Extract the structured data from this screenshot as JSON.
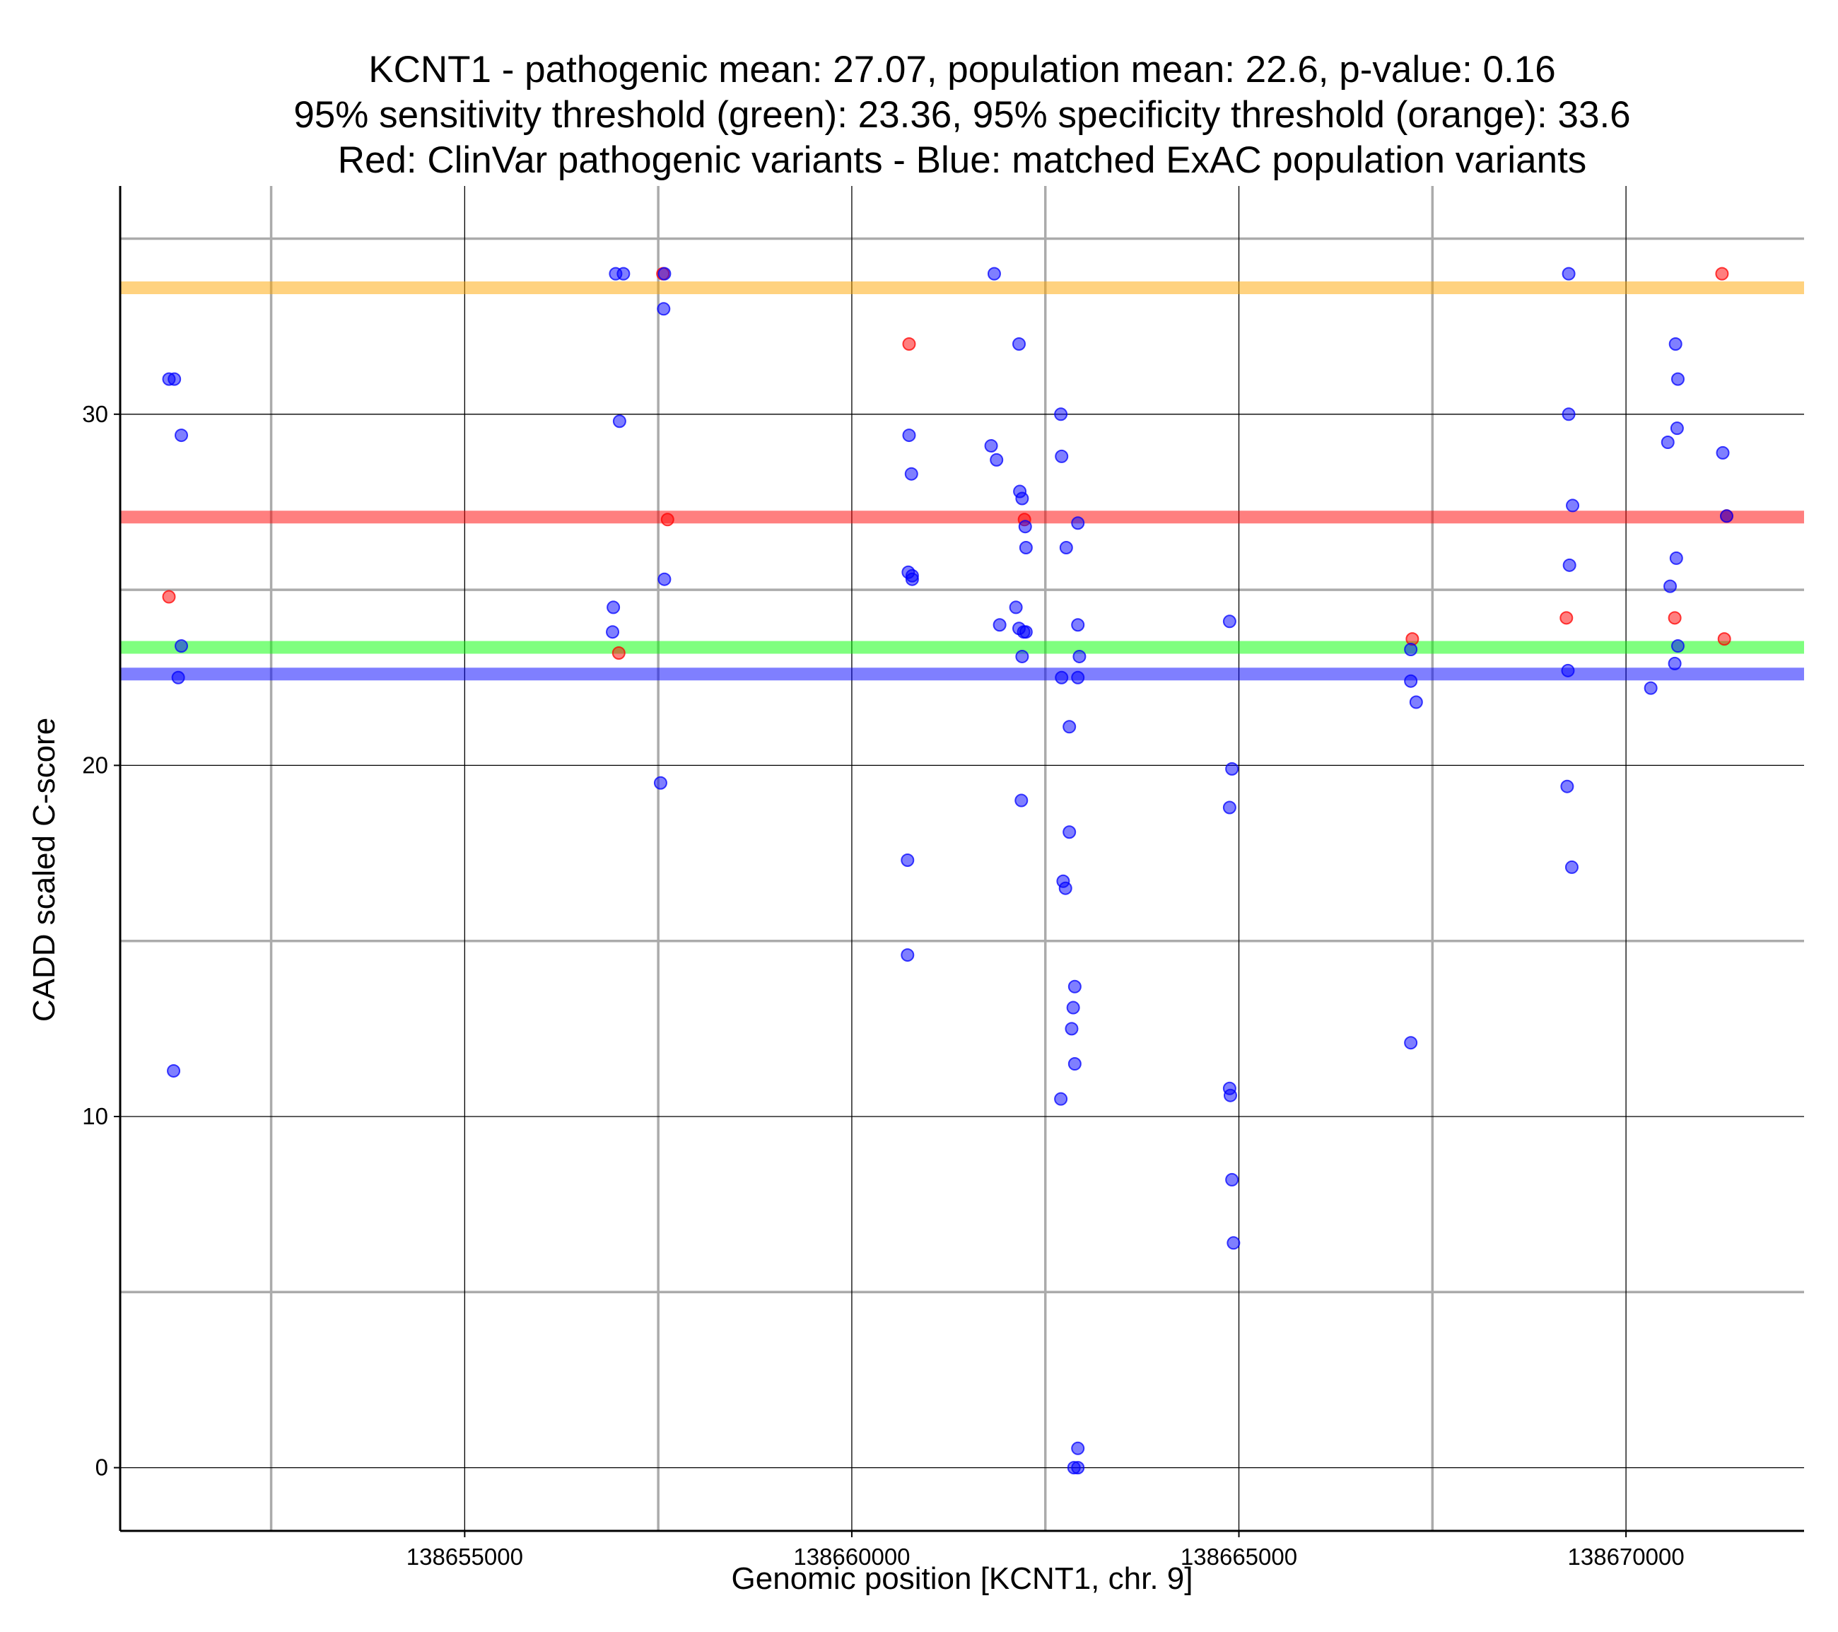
{
  "chart_data": {
    "type": "scatter",
    "title_lines": [
      "KCNT1 - pathogenic mean: 27.07, population mean: 22.6, p-value: 0.16",
      "95% sensitivity threshold (green): 23.36, 95% specificity threshold (orange): 33.6",
      "Red: ClinVar pathogenic variants - Blue: matched ExAC population variants"
    ],
    "xlabel": "Genomic position [KCNT1, chr. 9]",
    "ylabel": "CADD scaled C-score",
    "xlim": [
      138650550,
      138672300
    ],
    "ylim": [
      -1.8,
      36.5
    ],
    "x_major_ticks": [
      138655000,
      138660000,
      138665000,
      138670000
    ],
    "x_tick_labels": [
      "138655000",
      "138660000",
      "138665000",
      "138670000"
    ],
    "x_minor_ticks": [
      138652500,
      138657500,
      138662500,
      138667500
    ],
    "y_major_ticks": [
      0,
      10,
      20,
      30
    ],
    "y_tick_labels": [
      "0",
      "10",
      "20",
      "30"
    ],
    "y_minor_ticks": [
      5,
      15,
      25,
      35
    ],
    "hlines": [
      {
        "name": "specificity-threshold",
        "y": 33.6,
        "color": "#FFA500"
      },
      {
        "name": "pathogenic-mean",
        "y": 27.07,
        "color": "#FF0000"
      },
      {
        "name": "sensitivity-threshold",
        "y": 23.36,
        "color": "#00FF00"
      },
      {
        "name": "population-mean",
        "y": 22.6,
        "color": "#0000FF"
      }
    ],
    "series": [
      {
        "name": "ClinVar pathogenic variants",
        "color": "#FF0000",
        "points": [
          [
            138651180,
            24.8
          ],
          [
            138656990,
            23.2
          ],
          [
            138657560,
            34.0
          ],
          [
            138657620,
            27.0
          ],
          [
            138660740,
            32.0
          ],
          [
            138662230,
            27.0
          ],
          [
            138667240,
            23.6
          ],
          [
            138669230,
            24.2
          ],
          [
            138670630,
            24.2
          ],
          [
            138671240,
            34.0
          ],
          [
            138671270,
            23.6
          ],
          [
            138671300,
            27.1
          ]
        ]
      },
      {
        "name": "matched ExAC population variants",
        "color": "#0000FF",
        "points": [
          [
            138651180,
            31.0
          ],
          [
            138651250,
            31.0
          ],
          [
            138651340,
            29.4
          ],
          [
            138651340,
            23.4
          ],
          [
            138651300,
            22.5
          ],
          [
            138651240,
            11.3
          ],
          [
            138656950,
            34.0
          ],
          [
            138657050,
            34.0
          ],
          [
            138657580,
            34.0
          ],
          [
            138657570,
            33.0
          ],
          [
            138657000,
            29.8
          ],
          [
            138656920,
            24.5
          ],
          [
            138656910,
            23.8
          ],
          [
            138657580,
            25.3
          ],
          [
            138657530,
            19.5
          ],
          [
            138660740,
            29.4
          ],
          [
            138660770,
            28.3
          ],
          [
            138660730,
            25.5
          ],
          [
            138660780,
            25.4
          ],
          [
            138660780,
            25.3
          ],
          [
            138660720,
            17.3
          ],
          [
            138660720,
            14.6
          ],
          [
            138661840,
            34.0
          ],
          [
            138661800,
            29.1
          ],
          [
            138661870,
            28.7
          ],
          [
            138661910,
            24.0
          ],
          [
            138662160,
            32.0
          ],
          [
            138662170,
            27.8
          ],
          [
            138662200,
            27.6
          ],
          [
            138662240,
            26.8
          ],
          [
            138662250,
            26.2
          ],
          [
            138662120,
            24.5
          ],
          [
            138662160,
            23.9
          ],
          [
            138662220,
            23.8
          ],
          [
            138662250,
            23.8
          ],
          [
            138662200,
            23.1
          ],
          [
            138662190,
            19.0
          ],
          [
            138662700,
            30.0
          ],
          [
            138662710,
            28.8
          ],
          [
            138662770,
            26.2
          ],
          [
            138662920,
            26.9
          ],
          [
            138662920,
            24.0
          ],
          [
            138662940,
            23.1
          ],
          [
            138662710,
            22.5
          ],
          [
            138662920,
            22.5
          ],
          [
            138662810,
            21.1
          ],
          [
            138662810,
            18.1
          ],
          [
            138662730,
            16.7
          ],
          [
            138662760,
            16.5
          ],
          [
            138662880,
            13.7
          ],
          [
            138662860,
            13.1
          ],
          [
            138662840,
            12.5
          ],
          [
            138662880,
            11.5
          ],
          [
            138662700,
            10.5
          ],
          [
            138662920,
            0.55
          ],
          [
            138662870,
            0.0
          ],
          [
            138662920,
            0.0
          ],
          [
            138664880,
            24.1
          ],
          [
            138664910,
            19.9
          ],
          [
            138664880,
            18.8
          ],
          [
            138664880,
            10.8
          ],
          [
            138664890,
            10.6
          ],
          [
            138664910,
            8.2
          ],
          [
            138664930,
            6.4
          ],
          [
            138667220,
            23.3
          ],
          [
            138667220,
            22.4
          ],
          [
            138667290,
            21.8
          ],
          [
            138667220,
            12.1
          ],
          [
            138669260,
            34.0
          ],
          [
            138669260,
            30.0
          ],
          [
            138669310,
            27.4
          ],
          [
            138669270,
            25.7
          ],
          [
            138669250,
            22.7
          ],
          [
            138669240,
            19.4
          ],
          [
            138669300,
            17.1
          ],
          [
            138670640,
            32.0
          ],
          [
            138670670,
            31.0
          ],
          [
            138670660,
            29.6
          ],
          [
            138670540,
            29.2
          ],
          [
            138670650,
            25.9
          ],
          [
            138670570,
            25.1
          ],
          [
            138670670,
            23.4
          ],
          [
            138670630,
            22.9
          ],
          [
            138670320,
            22.2
          ],
          [
            138671250,
            28.9
          ],
          [
            138671300,
            27.1
          ]
        ]
      }
    ]
  }
}
